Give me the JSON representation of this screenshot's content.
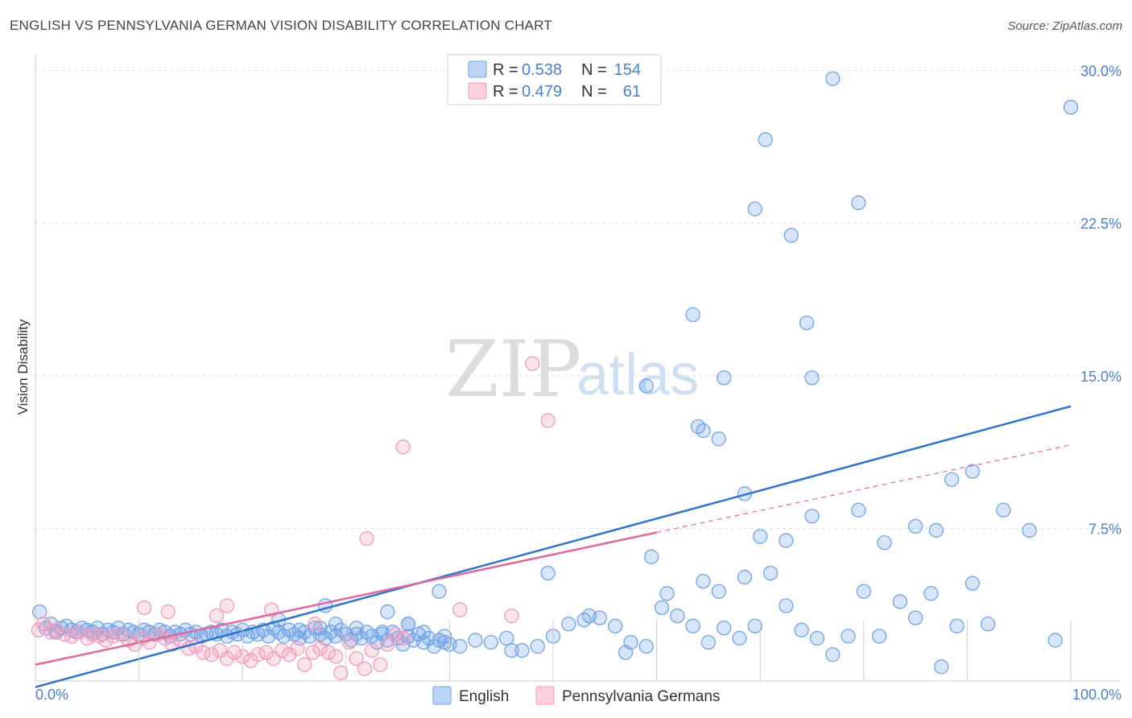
{
  "title": "ENGLISH VS PENNSYLVANIA GERMAN VISION DISABILITY CORRELATION CHART",
  "source": "Source: ZipAtlas.com",
  "watermark": {
    "part1": "ZIP",
    "part2": "atlas"
  },
  "colors": {
    "english": "#6fa3e8",
    "english_line": "#2f72d0",
    "pa_german": "#f29ab8",
    "pa_german_line": "#e2679a",
    "grid": "#d9d9d9",
    "tick": "#4a7fd0"
  },
  "legend": {
    "english": {
      "r_label": "R = ",
      "r_value": "0.538",
      "n_label": "N = ",
      "n_value": "154"
    },
    "pa_german": {
      "r_label": "R = ",
      "r_value": "0.479",
      "n_label": "N = ",
      "n_value": "61"
    }
  },
  "bottom_legend": {
    "english": "English",
    "pa_german": "Pennsylvania Germans"
  },
  "chart_data": {
    "type": "scatter",
    "title": "ENGLISH VS PENNSYLVANIA GERMAN VISION DISABILITY CORRELATION CHART",
    "xlabel": "",
    "ylabel": "Vision Disability",
    "xlim": [
      0,
      100
    ],
    "ylim": [
      0,
      30.5
    ],
    "x_tick_labels": [
      "0.0%",
      "100.0%"
    ],
    "y_ticks": [
      7.5,
      15.0,
      22.5,
      30.0
    ],
    "y_tick_labels": [
      "7.5%",
      "15.0%",
      "22.5%",
      "30.0%"
    ],
    "grid": true,
    "legend_position": "top-center",
    "series": [
      {
        "name": "English",
        "trendline": {
          "x": [
            0,
            100
          ],
          "y": [
            -0.3,
            13.5
          ],
          "style": "solid"
        },
        "points": [
          [
            0.4,
            3.4
          ],
          [
            1.0,
            2.6
          ],
          [
            1.5,
            2.8
          ],
          [
            2.0,
            2.4
          ],
          [
            2.5,
            2.6
          ],
          [
            3.0,
            2.7
          ],
          [
            3.5,
            2.5
          ],
          [
            4.0,
            2.4
          ],
          [
            4.5,
            2.6
          ],
          [
            5.0,
            2.5
          ],
          [
            5.5,
            2.4
          ],
          [
            6.0,
            2.6
          ],
          [
            6.5,
            2.3
          ],
          [
            7.0,
            2.5
          ],
          [
            7.5,
            2.4
          ],
          [
            8.0,
            2.6
          ],
          [
            8.5,
            2.3
          ],
          [
            9.0,
            2.5
          ],
          [
            9.5,
            2.4
          ],
          [
            10.0,
            2.3
          ],
          [
            10.5,
            2.5
          ],
          [
            11.0,
            2.4
          ],
          [
            11.5,
            2.3
          ],
          [
            12.0,
            2.5
          ],
          [
            12.5,
            2.4
          ],
          [
            13.0,
            2.2
          ],
          [
            13.5,
            2.4
          ],
          [
            14.0,
            2.3
          ],
          [
            14.5,
            2.5
          ],
          [
            15.0,
            2.3
          ],
          [
            15.5,
            2.4
          ],
          [
            16.0,
            2.2
          ],
          [
            16.5,
            2.3
          ],
          [
            17.0,
            2.4
          ],
          [
            17.5,
            2.3
          ],
          [
            18.0,
            2.5
          ],
          [
            18.5,
            2.2
          ],
          [
            19.0,
            2.4
          ],
          [
            19.5,
            2.3
          ],
          [
            20.0,
            2.5
          ],
          [
            20.5,
            2.2
          ],
          [
            21.0,
            2.4
          ],
          [
            21.5,
            2.3
          ],
          [
            22.0,
            2.5
          ],
          [
            22.5,
            2.2
          ],
          [
            23.0,
            2.6
          ],
          [
            23.5,
            2.4
          ],
          [
            24.0,
            2.2
          ],
          [
            24.5,
            2.5
          ],
          [
            25.0,
            2.3
          ],
          [
            25.5,
            2.1
          ],
          [
            26.0,
            2.4
          ],
          [
            26.5,
            2.2
          ],
          [
            27.0,
            2.6
          ],
          [
            27.5,
            2.3
          ],
          [
            28.0,
            2.1
          ],
          [
            28.5,
            2.4
          ],
          [
            29.0,
            2.2
          ],
          [
            29.5,
            2.5
          ],
          [
            30.0,
            2.3
          ],
          [
            30.5,
            2.0
          ],
          [
            31.0,
            2.3
          ],
          [
            31.5,
            2.1
          ],
          [
            32.0,
            2.4
          ],
          [
            32.5,
            2.2
          ],
          [
            33.0,
            1.9
          ],
          [
            33.5,
            2.3
          ],
          [
            34.0,
            2.0
          ],
          [
            34.5,
            2.4
          ],
          [
            35.0,
            2.1
          ],
          [
            35.5,
            1.8
          ],
          [
            36.0,
            2.2
          ],
          [
            36.5,
            2.0
          ],
          [
            37.0,
            2.3
          ],
          [
            37.5,
            1.9
          ],
          [
            38.0,
            2.1
          ],
          [
            38.5,
            1.7
          ],
          [
            39.0,
            2.0
          ],
          [
            39.5,
            2.2
          ],
          [
            40.0,
            1.8
          ],
          [
            23.5,
            3.0
          ],
          [
            25.5,
            2.5
          ],
          [
            27.5,
            2.6
          ],
          [
            29.0,
            2.8
          ],
          [
            31.0,
            2.6
          ],
          [
            33.5,
            2.4
          ],
          [
            36.0,
            2.8
          ],
          [
            37.5,
            2.4
          ],
          [
            39.5,
            1.9
          ],
          [
            41.0,
            1.7
          ],
          [
            42.5,
            2.0
          ],
          [
            44.0,
            1.9
          ],
          [
            45.5,
            2.1
          ],
          [
            47.0,
            1.5
          ],
          [
            48.5,
            1.7
          ],
          [
            50.0,
            2.2
          ],
          [
            51.5,
            2.8
          ],
          [
            53.0,
            3.0
          ],
          [
            54.5,
            3.1
          ],
          [
            56.0,
            2.7
          ],
          [
            57.5,
            1.9
          ],
          [
            59.0,
            1.7
          ],
          [
            60.5,
            3.6
          ],
          [
            62.0,
            3.2
          ],
          [
            63.5,
            2.7
          ],
          [
            65.0,
            1.9
          ],
          [
            66.5,
            2.6
          ],
          [
            68.0,
            2.1
          ],
          [
            69.5,
            2.7
          ],
          [
            71.0,
            5.3
          ],
          [
            72.5,
            3.7
          ],
          [
            74.0,
            2.5
          ],
          [
            75.5,
            2.1
          ],
          [
            77.0,
            1.3
          ],
          [
            78.5,
            2.2
          ],
          [
            80.0,
            4.4
          ],
          [
            81.5,
            2.2
          ],
          [
            83.5,
            3.9
          ],
          [
            85.0,
            3.1
          ],
          [
            86.5,
            4.3
          ],
          [
            87.5,
            0.7
          ],
          [
            89.0,
            2.7
          ],
          [
            90.5,
            4.8
          ],
          [
            92.0,
            2.8
          ],
          [
            28.0,
            3.7
          ],
          [
            34.0,
            3.4
          ],
          [
            36.0,
            2.8
          ],
          [
            39.0,
            4.4
          ],
          [
            46.0,
            1.5
          ],
          [
            49.5,
            5.3
          ],
          [
            53.5,
            3.2
          ],
          [
            57.0,
            1.4
          ],
          [
            59.5,
            6.1
          ],
          [
            61.0,
            4.3
          ],
          [
            64.5,
            4.9
          ],
          [
            66.0,
            4.4
          ],
          [
            68.5,
            5.1
          ],
          [
            70.0,
            7.1
          ],
          [
            72.5,
            6.9
          ],
          [
            75.0,
            8.1
          ],
          [
            79.5,
            8.4
          ],
          [
            82.0,
            6.8
          ],
          [
            85.0,
            7.6
          ],
          [
            87.0,
            7.4
          ],
          [
            88.5,
            9.9
          ],
          [
            90.5,
            10.3
          ],
          [
            93.5,
            8.4
          ],
          [
            96.0,
            7.4
          ],
          [
            98.5,
            2.0
          ],
          [
            100.0,
            28.2
          ],
          [
            59.0,
            14.5
          ],
          [
            63.5,
            18.0
          ],
          [
            64.0,
            12.5
          ],
          [
            64.5,
            12.3
          ],
          [
            66.0,
            11.9
          ],
          [
            66.5,
            14.9
          ],
          [
            68.5,
            9.2
          ],
          [
            69.5,
            23.2
          ],
          [
            70.5,
            26.6
          ],
          [
            73.0,
            21.9
          ],
          [
            74.5,
            17.6
          ],
          [
            75.0,
            14.9
          ],
          [
            77.0,
            29.6
          ],
          [
            79.5,
            23.5
          ]
        ]
      },
      {
        "name": "Pennsylvania Germans",
        "trendline": {
          "x": [
            0,
            60,
            100
          ],
          "y": [
            0.8,
            7.3,
            11.6
          ],
          "style": "solid-then-dashed"
        },
        "points": [
          [
            0.3,
            2.5
          ],
          [
            0.8,
            2.8
          ],
          [
            1.5,
            2.4
          ],
          [
            2.0,
            2.5
          ],
          [
            2.8,
            2.3
          ],
          [
            3.5,
            2.2
          ],
          [
            4.2,
            2.4
          ],
          [
            5.0,
            2.1
          ],
          [
            5.5,
            2.3
          ],
          [
            6.2,
            2.2
          ],
          [
            6.8,
            2.0
          ],
          [
            7.5,
            2.2
          ],
          [
            8.2,
            2.3
          ],
          [
            9.0,
            2.0
          ],
          [
            9.6,
            1.8
          ],
          [
            10.3,
            2.1
          ],
          [
            11.0,
            1.9
          ],
          [
            11.8,
            2.3
          ],
          [
            12.5,
            2.1
          ],
          [
            13.2,
            1.8
          ],
          [
            14.0,
            2.0
          ],
          [
            14.8,
            1.6
          ],
          [
            15.5,
            1.7
          ],
          [
            16.2,
            1.4
          ],
          [
            17.0,
            1.3
          ],
          [
            17.8,
            1.5
          ],
          [
            18.5,
            1.1
          ],
          [
            19.2,
            1.4
          ],
          [
            20.0,
            1.2
          ],
          [
            20.8,
            1.0
          ],
          [
            21.5,
            1.3
          ],
          [
            22.3,
            1.4
          ],
          [
            23.0,
            1.1
          ],
          [
            23.8,
            1.5
          ],
          [
            24.5,
            1.3
          ],
          [
            25.3,
            1.6
          ],
          [
            26.0,
            0.8
          ],
          [
            26.8,
            1.4
          ],
          [
            27.5,
            1.6
          ],
          [
            28.3,
            1.4
          ],
          [
            29.0,
            1.2
          ],
          [
            29.5,
            0.4
          ],
          [
            30.3,
            1.9
          ],
          [
            31.0,
            1.1
          ],
          [
            31.8,
            0.6
          ],
          [
            32.5,
            1.5
          ],
          [
            33.3,
            0.8
          ],
          [
            34.0,
            1.8
          ],
          [
            34.8,
            2.3
          ],
          [
            35.5,
            2.1
          ],
          [
            10.5,
            3.6
          ],
          [
            12.8,
            3.4
          ],
          [
            17.5,
            3.2
          ],
          [
            18.5,
            3.7
          ],
          [
            22.8,
            3.5
          ],
          [
            27.0,
            2.8
          ],
          [
            32.0,
            7.0
          ],
          [
            35.5,
            11.5
          ],
          [
            41.0,
            3.5
          ],
          [
            46.0,
            3.2
          ],
          [
            49.5,
            12.8
          ],
          [
            48.0,
            15.6
          ]
        ]
      }
    ]
  }
}
